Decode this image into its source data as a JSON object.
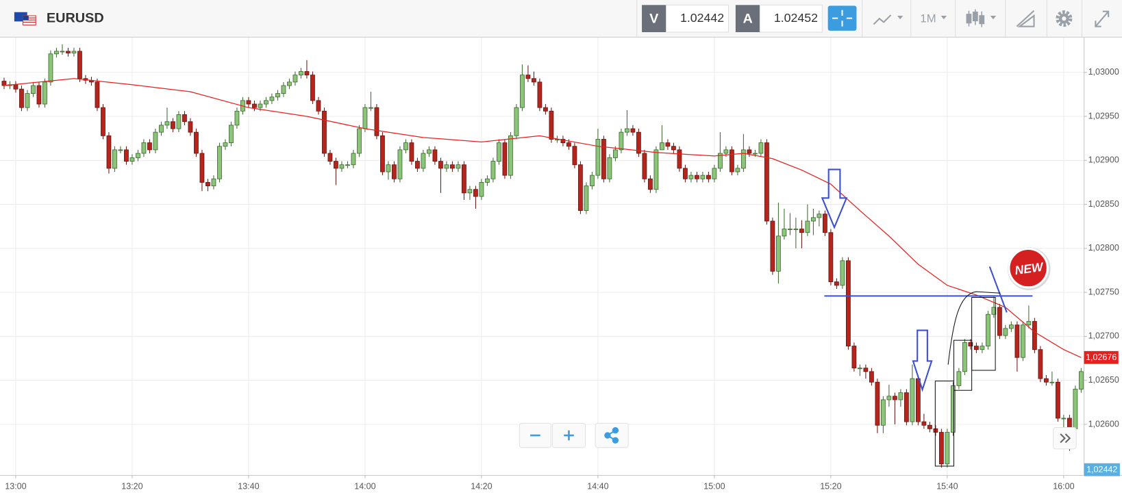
{
  "header": {
    "symbol": "EURUSD",
    "sell_label": "V",
    "sell_price": "1.02442",
    "buy_label": "A",
    "buy_price": "1.02452",
    "timeframe": "1M"
  },
  "badge": "NEW",
  "bid_tag": "1,02442",
  "chart_data": {
    "type": "candlestick",
    "x": [
      -2,
      -1,
      0,
      1,
      2,
      3,
      4,
      5,
      6,
      7,
      8,
      9,
      10,
      11,
      12,
      13,
      14,
      15,
      16,
      17,
      18,
      19,
      20,
      21,
      22,
      23,
      24,
      25,
      26,
      27,
      28,
      29,
      30,
      31,
      32,
      33,
      34,
      35,
      36,
      37,
      38,
      39,
      40,
      41,
      42,
      43,
      44,
      45,
      46,
      47,
      48,
      49,
      50,
      51,
      52,
      53,
      54,
      55,
      56,
      57,
      58,
      59,
      60,
      61,
      62,
      63,
      64,
      65,
      66,
      67,
      68,
      69,
      70,
      71,
      72,
      73,
      74,
      75,
      76,
      77,
      78,
      79,
      80,
      81,
      82,
      83,
      84,
      85,
      86,
      87,
      88,
      89,
      90,
      91,
      92,
      93,
      94,
      95,
      96,
      97,
      98,
      99,
      100,
      101,
      102,
      103,
      104,
      105,
      106,
      107,
      108,
      109,
      110,
      111,
      112,
      113,
      114,
      115,
      116,
      117,
      118,
      119,
      120,
      121,
      122,
      123,
      124,
      125,
      126,
      127,
      128,
      129,
      130,
      131,
      132,
      133,
      134,
      135,
      136,
      137,
      138,
      139,
      140,
      141,
      142,
      143,
      144,
      145,
      146,
      147,
      148,
      149,
      150,
      151,
      152,
      153,
      154,
      155,
      156,
      157,
      158,
      159,
      160,
      161,
      162,
      163,
      164,
      165,
      166,
      167,
      168,
      169,
      170,
      171,
      172,
      173,
      174,
      175,
      176,
      177,
      178,
      179,
      180,
      181,
      182,
      183
    ],
    "open": [
      1.0299,
      1.02985,
      1.02986,
      1.02981,
      1.0296,
      1.02976,
      1.02985,
      1.02964,
      1.02989,
      1.03021,
      1.03024,
      1.03024,
      1.03022,
      1.03024,
      1.02993,
      1.02991,
      1.02989,
      1.0296,
      1.02928,
      1.02891,
      1.02912,
      1.02912,
      1.02899,
      1.02903,
      1.02908,
      1.0292,
      1.02912,
      1.02932,
      1.0294,
      1.02944,
      1.02936,
      1.02952,
      1.02944,
      1.02932,
      1.02908,
      1.02875,
      1.02871,
      1.02879,
      1.02916,
      1.0292,
      1.0294,
      1.02956,
      1.02968,
      1.02964,
      1.0296,
      1.02964,
      1.02968,
      1.02972,
      1.02976,
      1.02985,
      1.02989,
      1.02997,
      1.03001,
      1.02997,
      1.02968,
      1.02956,
      1.02908,
      1.02899,
      1.02891,
      1.02895,
      1.02895,
      1.02908,
      1.02936,
      1.0296,
      1.0296,
      1.02928,
      1.02887,
      1.02895,
      1.02879,
      1.02912,
      1.0292,
      1.02899,
      1.02891,
      1.02908,
      1.02912,
      1.02899,
      1.02891,
      1.02895,
      1.02891,
      1.02895,
      1.02863,
      1.02867,
      1.02859,
      1.02875,
      1.02879,
      1.02899,
      1.0292,
      1.02883,
      1.02928,
      1.0296,
      1.02997,
      1.02993,
      1.02989,
      1.0296,
      1.02956,
      1.02924,
      1.02924,
      1.0292,
      1.02916,
      1.02895,
      1.02843,
      1.02871,
      1.02883,
      1.02924,
      1.02879,
      1.02903,
      1.02912,
      1.02932,
      1.02936,
      1.02932,
      1.02908,
      1.02879,
      1.02867,
      1.02912,
      1.0292,
      1.02916,
      1.02912,
      1.02891,
      1.02879,
      1.02883,
      1.02879,
      1.02883,
      1.02879,
      1.02891,
      1.02908,
      1.02912,
      1.02887,
      1.02891,
      1.02912,
      1.02908,
      1.02908,
      1.0292,
      1.02831,
      1.02774,
      1.02814,
      1.02822,
      1.02822,
      1.02822,
      1.02818,
      1.02831,
      1.02835,
      1.02839,
      1.02818,
      1.02762,
      1.02758,
      1.02786,
      1.02689,
      1.02664,
      1.02664,
      1.0266,
      1.02648,
      1.02599,
      1.02628,
      1.02632,
      1.02628,
      1.02636,
      1.02603,
      1.02652,
      1.02603,
      1.02599,
      1.02595,
      1.02591,
      1.02555,
      1.02591,
      1.02644,
      1.0266,
      1.02693,
      1.02689,
      1.02685,
      1.02689,
      1.02725,
      1.02733,
      1.02701,
      1.02709,
      1.02713,
      1.02676,
      1.02713,
      1.02717,
      1.02685,
      1.02652,
      1.02648,
      1.02648,
      1.02607,
      1.02607,
      1.02595,
      1.0264
    ],
    "high": [
      1.02994,
      1.0299,
      1.0299,
      1.02985,
      1.0298,
      1.02989,
      1.02989,
      1.02993,
      1.03025,
      1.03028,
      1.03032,
      1.03028,
      1.03028,
      1.03028,
      1.02997,
      1.02995,
      1.02993,
      1.02964,
      1.02932,
      1.02916,
      1.02916,
      1.02916,
      1.02907,
      1.02912,
      1.02924,
      1.02924,
      1.02936,
      1.02944,
      1.0296,
      1.02948,
      1.02956,
      1.02956,
      1.02948,
      1.02936,
      1.02912,
      1.02879,
      1.02883,
      1.0292,
      1.02924,
      1.02944,
      1.0296,
      1.02972,
      1.02972,
      1.02968,
      1.02968,
      1.02972,
      1.02976,
      1.0298,
      1.02989,
      1.02993,
      1.03001,
      1.03005,
      1.03014,
      1.03001,
      1.02972,
      1.0296,
      1.02912,
      1.02903,
      1.02899,
      1.02899,
      1.02912,
      1.0294,
      1.02964,
      1.02978,
      1.02964,
      1.02932,
      1.02899,
      1.02899,
      1.02916,
      1.02924,
      1.02924,
      1.02903,
      1.02912,
      1.02916,
      1.02916,
      1.02903,
      1.02899,
      1.02899,
      1.02899,
      1.02899,
      1.02871,
      1.02871,
      1.02879,
      1.02883,
      1.02903,
      1.02924,
      1.02924,
      1.02932,
      1.02964,
      1.03009,
      1.03008,
      1.03001,
      1.02993,
      1.02964,
      1.0296,
      1.02928,
      1.02928,
      1.02924,
      1.0292,
      1.02899,
      1.02875,
      1.02887,
      1.02936,
      1.02928,
      1.02907,
      1.02916,
      1.02936,
      1.02957,
      1.0294,
      1.02936,
      1.02912,
      1.02883,
      1.02916,
      1.0294,
      1.02924,
      1.0292,
      1.02916,
      1.02895,
      1.02887,
      1.02887,
      1.02887,
      1.02887,
      1.02895,
      1.02932,
      1.02916,
      1.02916,
      1.02895,
      1.0293,
      1.02916,
      1.02912,
      1.02924,
      1.02924,
      1.02835,
      1.02852,
      1.02845,
      1.0284,
      1.02835,
      1.02832,
      1.0285,
      1.02845,
      1.02843,
      1.02843,
      1.02822,
      1.02766,
      1.0279,
      1.0279,
      1.02693,
      1.02668,
      1.02668,
      1.02664,
      1.02652,
      1.02632,
      1.02645,
      1.02636,
      1.0264,
      1.0264,
      1.02668,
      1.02656,
      1.02612,
      1.02603,
      1.02599,
      1.02595,
      1.02595,
      1.02648,
      1.02664,
      1.02697,
      1.02697,
      1.02693,
      1.02693,
      1.02729,
      1.02745,
      1.02737,
      1.02713,
      1.02717,
      1.02717,
      1.02717,
      1.02735,
      1.02721,
      1.02689,
      1.02656,
      1.0266,
      1.02652,
      1.02611,
      1.02611,
      1.02644,
      1.02664
    ],
    "low": [
      1.02981,
      1.02981,
      1.02977,
      1.02956,
      1.02956,
      1.02972,
      1.0296,
      1.0296,
      1.02985,
      1.03017,
      1.0302,
      1.03018,
      1.03018,
      1.02989,
      1.02987,
      1.02985,
      1.02956,
      1.02924,
      1.02885,
      1.02887,
      1.02908,
      1.02895,
      1.02895,
      1.02899,
      1.02904,
      1.02908,
      1.02908,
      1.02928,
      1.02936,
      1.02932,
      1.02932,
      1.0294,
      1.02928,
      1.02904,
      1.02865,
      1.02865,
      1.02867,
      1.02875,
      1.02912,
      1.02916,
      1.02936,
      1.02952,
      1.0296,
      1.02956,
      1.02956,
      1.0296,
      1.02964,
      1.02968,
      1.02972,
      1.02981,
      1.02985,
      1.02993,
      1.02993,
      1.02964,
      1.02952,
      1.02904,
      1.02895,
      1.02872,
      1.02887,
      1.02891,
      1.02891,
      1.02904,
      1.02932,
      1.02956,
      1.02924,
      1.02883,
      1.02878,
      1.02875,
      1.02875,
      1.02908,
      1.02895,
      1.02887,
      1.02887,
      1.02904,
      1.02895,
      1.02863,
      1.02887,
      1.02887,
      1.02887,
      1.02855,
      1.02855,
      1.02845,
      1.02855,
      1.02871,
      1.02875,
      1.02895,
      1.02879,
      1.02879,
      1.02924,
      1.02956,
      1.02989,
      1.02985,
      1.02956,
      1.02952,
      1.0292,
      1.0292,
      1.02916,
      1.02912,
      1.02891,
      1.02839,
      1.02839,
      1.02867,
      1.02879,
      1.02875,
      1.02875,
      1.02899,
      1.02908,
      1.02928,
      1.02928,
      1.02904,
      1.02875,
      1.02863,
      1.02863,
      1.02916,
      1.02912,
      1.02908,
      1.02887,
      1.02875,
      1.02875,
      1.02875,
      1.02875,
      1.02875,
      1.02875,
      1.02887,
      1.02904,
      1.02883,
      1.02883,
      1.02887,
      1.02904,
      1.02904,
      1.02904,
      1.02827,
      1.0277,
      1.0276,
      1.0281,
      1.02815,
      1.028,
      1.028,
      1.02814,
      1.02815,
      1.02825,
      1.02814,
      1.02758,
      1.02754,
      1.02754,
      1.02685,
      1.0266,
      1.02655,
      1.02652,
      1.02644,
      1.0259,
      1.0259,
      1.0262,
      1.026,
      1.0262,
      1.02599,
      1.02599,
      1.02599,
      1.02595,
      1.02591,
      1.02587,
      1.02551,
      1.02551,
      1.02587,
      1.0264,
      1.02656,
      1.02685,
      1.02681,
      1.02681,
      1.02685,
      1.02721,
      1.02697,
      1.02697,
      1.02705,
      1.0266,
      1.02672,
      1.02709,
      1.02681,
      1.02648,
      1.02644,
      1.02644,
      1.02603,
      1.02595,
      1.0257,
      1.02591,
      1.02636
    ],
    "close": [
      1.02985,
      1.02986,
      1.02981,
      1.0296,
      1.02976,
      1.02985,
      1.02964,
      1.02989,
      1.03021,
      1.03024,
      1.03024,
      1.03022,
      1.03024,
      1.02993,
      1.02991,
      1.02989,
      1.0296,
      1.02928,
      1.02891,
      1.02912,
      1.02912,
      1.02899,
      1.02903,
      1.02908,
      1.0292,
      1.02912,
      1.02932,
      1.0294,
      1.02944,
      1.02936,
      1.02952,
      1.02944,
      1.02932,
      1.02908,
      1.02875,
      1.02871,
      1.02879,
      1.02916,
      1.0292,
      1.0294,
      1.02956,
      1.02968,
      1.02964,
      1.0296,
      1.02964,
      1.02968,
      1.02972,
      1.02976,
      1.02985,
      1.02989,
      1.02997,
      1.03001,
      1.02997,
      1.02968,
      1.02956,
      1.02908,
      1.02899,
      1.02891,
      1.02895,
      1.02895,
      1.02908,
      1.02936,
      1.0296,
      1.0296,
      1.02928,
      1.02887,
      1.02895,
      1.02879,
      1.02912,
      1.0292,
      1.02899,
      1.02891,
      1.02908,
      1.02912,
      1.02899,
      1.02891,
      1.02895,
      1.02891,
      1.02895,
      1.02863,
      1.02867,
      1.02859,
      1.02875,
      1.02879,
      1.02899,
      1.0292,
      1.02883,
      1.02928,
      1.0296,
      1.02997,
      1.02993,
      1.02989,
      1.0296,
      1.02956,
      1.02924,
      1.02924,
      1.0292,
      1.02916,
      1.02895,
      1.02843,
      1.02871,
      1.02883,
      1.02924,
      1.02879,
      1.02903,
      1.02912,
      1.02932,
      1.02936,
      1.02932,
      1.02908,
      1.02879,
      1.02867,
      1.02912,
      1.0292,
      1.02916,
      1.02912,
      1.02891,
      1.02879,
      1.02883,
      1.02879,
      1.02883,
      1.02879,
      1.02891,
      1.02908,
      1.02912,
      1.02887,
      1.02891,
      1.02912,
      1.02908,
      1.02908,
      1.0292,
      1.02831,
      1.02774,
      1.02814,
      1.02822,
      1.02822,
      1.02822,
      1.02818,
      1.02831,
      1.02835,
      1.02839,
      1.02818,
      1.02762,
      1.02758,
      1.02786,
      1.02689,
      1.02664,
      1.02664,
      1.0266,
      1.02648,
      1.02599,
      1.02628,
      1.02632,
      1.02628,
      1.02636,
      1.02603,
      1.02652,
      1.02603,
      1.02599,
      1.02595,
      1.02591,
      1.02555,
      1.02591,
      1.02644,
      1.0266,
      1.02693,
      1.02689,
      1.02685,
      1.02689,
      1.02725,
      1.02733,
      1.02701,
      1.02709,
      1.02713,
      1.02676,
      1.02713,
      1.02717,
      1.02685,
      1.02652,
      1.02648,
      1.02648,
      1.02607,
      1.02607,
      1.02595,
      1.0264,
      1.0266
    ],
    "up_color": "#8cc47a",
    "down_color": "#b3261e",
    "ema": {
      "color": "#e8201c",
      "x": [
        -2,
        10,
        20,
        30,
        40,
        50,
        60,
        70,
        80,
        90,
        100,
        110,
        120,
        125,
        130,
        135,
        140,
        145,
        150,
        155,
        160,
        165,
        170,
        175,
        180,
        183
      ],
      "values": [
        1.02985,
        1.02993,
        1.02986,
        1.02978,
        1.0296,
        1.0295,
        1.02936,
        1.02926,
        1.02921,
        1.02928,
        1.02916,
        1.02909,
        1.02905,
        1.02908,
        1.02902,
        1.02889,
        1.02873,
        1.02843,
        1.02814,
        1.02782,
        1.02758,
        1.02747,
        1.02733,
        1.02705,
        1.02685,
        1.02676
      ],
      "tag": {
        "value": 1.02676,
        "label": "1,02676"
      }
    },
    "xlim": [
      -2.7,
      183.5
    ],
    "ylim": [
      1.02542,
      1.0304
    ],
    "xticks": [
      {
        "value": 0,
        "label": "13:00"
      },
      {
        "value": 20,
        "label": "13:20"
      },
      {
        "value": 40,
        "label": "13:40"
      },
      {
        "value": 60,
        "label": "14:00"
      },
      {
        "value": 80,
        "label": "14:20"
      },
      {
        "value": 100,
        "label": "14:40"
      },
      {
        "value": 120,
        "label": "15:00"
      },
      {
        "value": 140,
        "label": "15:20"
      },
      {
        "value": 160,
        "label": "15:40"
      },
      {
        "value": 180,
        "label": "16:00"
      }
    ],
    "yticks": [
      {
        "value": 1.026,
        "label": "1,02600"
      },
      {
        "value": 1.0265,
        "label": "1,02650"
      },
      {
        "value": 1.027,
        "label": "1,02700"
      },
      {
        "value": 1.0275,
        "label": "1,02750"
      },
      {
        "value": 1.028,
        "label": "1,02800"
      },
      {
        "value": 1.0285,
        "label": "1,02850"
      },
      {
        "value": 1.029,
        "label": "1,02900"
      },
      {
        "value": 1.0295,
        "label": "1,02950"
      },
      {
        "value": 1.03,
        "label": "1,03000"
      }
    ],
    "grid": true
  }
}
